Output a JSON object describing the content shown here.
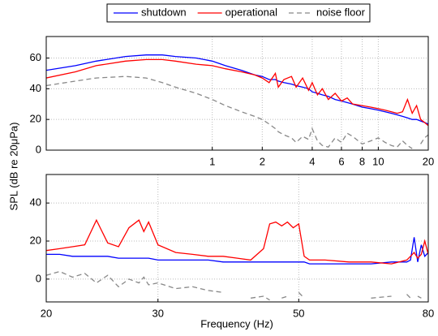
{
  "chart_data": [
    {
      "type": "line",
      "xscale": "log",
      "grid": true,
      "legend": "top",
      "xlim": [
        0.1,
        20
      ],
      "ylim": [
        0,
        74
      ],
      "xticks": [
        1,
        2,
        4,
        6,
        8,
        10,
        20
      ],
      "yticks": [
        0,
        20,
        40,
        60
      ],
      "x": [
        0.1,
        0.15,
        0.2,
        0.3,
        0.4,
        0.5,
        0.6,
        0.8,
        1,
        1.2,
        1.5,
        1.8,
        2,
        2.2,
        2.4,
        2.5,
        2.7,
        3,
        3.2,
        3.5,
        3.8,
        4,
        4.3,
        4.6,
        5,
        5.5,
        6,
        6.5,
        7,
        8,
        9,
        10,
        11,
        12,
        13,
        14,
        15,
        16,
        17,
        18,
        19,
        20
      ],
      "series": [
        {
          "name": "shutdown",
          "color": "#0000ff",
          "linestyle": "solid",
          "values": [
            52,
            55,
            58,
            61,
            62,
            62,
            61,
            60,
            58,
            55,
            52,
            49,
            48,
            46,
            46,
            45,
            44,
            43,
            42,
            41,
            40,
            38,
            37,
            36,
            35,
            33,
            32,
            31,
            30,
            28,
            27,
            26,
            25,
            24,
            23,
            22,
            21,
            20,
            20,
            19,
            18,
            17
          ]
        },
        {
          "name": "operational",
          "color": "#ff0000",
          "linestyle": "solid",
          "values": [
            47,
            51,
            55,
            58,
            59,
            59,
            58,
            56,
            55,
            53,
            51,
            49,
            47,
            44,
            50,
            41,
            46,
            48,
            41,
            47,
            39,
            44,
            36,
            40,
            33,
            37,
            32,
            34,
            30,
            29,
            28,
            27,
            26,
            25,
            24,
            25,
            33,
            24,
            29,
            20,
            18,
            16
          ]
        },
        {
          "name": "noise floor",
          "color": "#888888",
          "linestyle": "dashed",
          "values": [
            42,
            45,
            47,
            48,
            47,
            44,
            41,
            37,
            33,
            29,
            25,
            22,
            20,
            17,
            14,
            12,
            10,
            8,
            5,
            9,
            7,
            14,
            6,
            3,
            2,
            8,
            5,
            11,
            9,
            4,
            6,
            8,
            5,
            3,
            2,
            6,
            3,
            1,
            null,
            4,
            8,
            10
          ]
        }
      ]
    },
    {
      "type": "line",
      "xscale": "log",
      "grid": true,
      "ylabel": "SPL (dB re 20μPa)",
      "xlabel": "Frequency (Hz)",
      "xlim": [
        20,
        80
      ],
      "ylim": [
        -12,
        55
      ],
      "xticks": [
        20,
        30,
        50,
        80
      ],
      "yticks": [
        0,
        20,
        40
      ],
      "x": [
        20,
        21,
        22,
        23,
        24,
        25,
        26,
        27,
        28,
        28.5,
        29,
        30,
        32,
        34,
        36,
        38,
        40,
        42,
        44,
        45,
        46,
        47,
        48,
        49,
        50,
        51,
        52,
        55,
        60,
        65,
        70,
        72,
        74,
        75,
        76,
        77,
        78,
        79,
        80
      ],
      "series": [
        {
          "color": "#0000ff",
          "linestyle": "solid",
          "values": [
            13,
            13,
            12,
            12,
            12,
            12,
            11,
            11,
            11,
            11,
            11,
            10,
            10,
            10,
            10,
            9,
            9,
            9,
            9,
            9,
            9,
            9,
            9,
            9,
            9,
            9,
            8,
            8,
            8,
            8,
            9,
            9,
            9,
            10,
            22,
            9,
            18,
            12,
            14
          ]
        },
        {
          "color": "#ff0000",
          "linestyle": "solid",
          "values": [
            15,
            16,
            17,
            18,
            31,
            19,
            17,
            27,
            31,
            25,
            30,
            18,
            14,
            13,
            12,
            12,
            11,
            10,
            16,
            29,
            30,
            28,
            30,
            27,
            29,
            12,
            10,
            10,
            9,
            9,
            8,
            9,
            10,
            12,
            14,
            11,
            13,
            20,
            13
          ]
        },
        {
          "color": "#888888",
          "linestyle": "dashed",
          "values": [
            2,
            4,
            1,
            3,
            -2,
            2,
            -4,
            0,
            -2,
            1,
            -3,
            -2,
            -5,
            -4,
            -6,
            -7,
            null,
            -10,
            -9,
            -11,
            null,
            -10,
            -9,
            null,
            -7,
            -10,
            null,
            -8,
            null,
            -10,
            -9,
            null,
            -8,
            -10,
            null,
            -9,
            -10,
            null,
            -8
          ]
        }
      ]
    }
  ]
}
